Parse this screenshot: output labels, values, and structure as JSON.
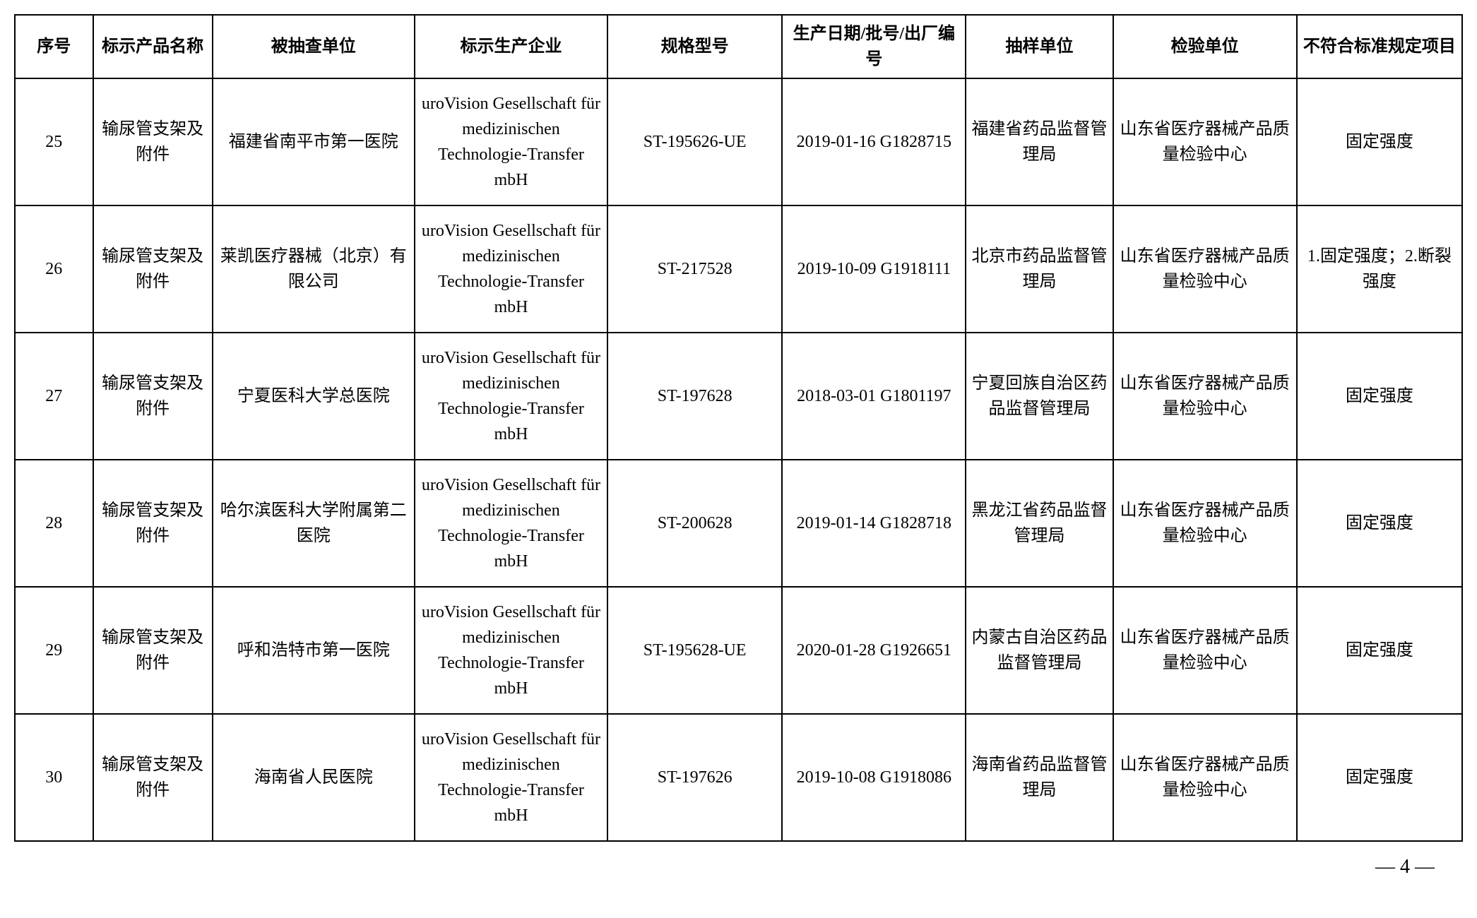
{
  "table": {
    "columns": [
      {
        "label": "序号",
        "class": "col-seq"
      },
      {
        "label": "标示产品名称",
        "class": "col-product"
      },
      {
        "label": "被抽查单位",
        "class": "col-inspected"
      },
      {
        "label": "标示生产企业",
        "class": "col-manufacturer"
      },
      {
        "label": "规格型号",
        "class": "col-model"
      },
      {
        "label": "生产日期/批号/出厂编号",
        "class": "col-date"
      },
      {
        "label": "抽样单位",
        "class": "col-sampling"
      },
      {
        "label": "检验单位",
        "class": "col-testing"
      },
      {
        "label": "不符合标准规定项目",
        "class": "col-noncompliant"
      }
    ],
    "rows": [
      {
        "seq": "25",
        "product": "输尿管支架及附件",
        "inspected": "福建省南平市第一医院",
        "manufacturer": "uroVision Gesellschaft für medizinischen Technologie-Transfer mbH",
        "model": "ST-195626-UE",
        "date": "2019-01-16 G1828715",
        "sampling": "福建省药品监督管理局",
        "testing": "山东省医疗器械产品质量检验中心",
        "noncompliant": "固定强度"
      },
      {
        "seq": "26",
        "product": "输尿管支架及附件",
        "inspected": "莱凯医疗器械（北京）有限公司",
        "manufacturer": "uroVision Gesellschaft für medizinischen Technologie-Transfer mbH",
        "model": "ST-217528",
        "date": "2019-10-09 G1918111",
        "sampling": "北京市药品监督管理局",
        "testing": "山东省医疗器械产品质量检验中心",
        "noncompliant": "1.固定强度；2.断裂强度"
      },
      {
        "seq": "27",
        "product": "输尿管支架及附件",
        "inspected": "宁夏医科大学总医院",
        "manufacturer": "uroVision Gesellschaft für medizinischen Technologie-Transfer mbH",
        "model": "ST-197628",
        "date": "2018-03-01 G1801197",
        "sampling": "宁夏回族自治区药品监督管理局",
        "testing": "山东省医疗器械产品质量检验中心",
        "noncompliant": "固定强度"
      },
      {
        "seq": "28",
        "product": "输尿管支架及附件",
        "inspected": "哈尔滨医科大学附属第二医院",
        "manufacturer": "uroVision Gesellschaft für medizinischen Technologie-Transfer mbH",
        "model": "ST-200628",
        "date": "2019-01-14 G1828718",
        "sampling": "黑龙江省药品监督管理局",
        "testing": "山东省医疗器械产品质量检验中心",
        "noncompliant": "固定强度"
      },
      {
        "seq": "29",
        "product": "输尿管支架及附件",
        "inspected": "呼和浩特市第一医院",
        "manufacturer": "uroVision Gesellschaft für medizinischen Technologie-Transfer mbH",
        "model": "ST-195628-UE",
        "date": "2020-01-28 G1926651",
        "sampling": "内蒙古自治区药品监督管理局",
        "testing": "山东省医疗器械产品质量检验中心",
        "noncompliant": "固定强度"
      },
      {
        "seq": "30",
        "product": "输尿管支架及附件",
        "inspected": "海南省人民医院",
        "manufacturer": "uroVision Gesellschaft für medizinischen Technologie-Transfer mbH",
        "model": "ST-197626",
        "date": "2019-10-08 G1918086",
        "sampling": "海南省药品监督管理局",
        "testing": "山东省医疗器械产品质量检验中心",
        "noncompliant": "固定强度"
      }
    ]
  },
  "pageNumber": "— 4 —"
}
